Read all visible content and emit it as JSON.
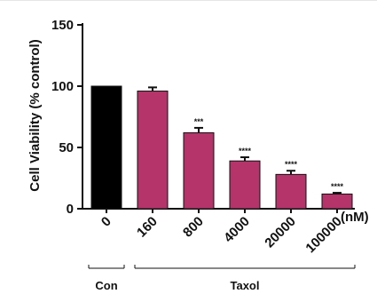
{
  "chart_data": {
    "type": "bar",
    "ylabel": "Cell Viability (% control)",
    "ylim": [
      0,
      150
    ],
    "yticks": [
      0,
      50,
      100,
      150
    ],
    "categories": [
      "0",
      "160",
      "800",
      "4000",
      "20000",
      "100000"
    ],
    "x_unit": "(nM)",
    "values": [
      100,
      96,
      62,
      39,
      28,
      12
    ],
    "errors": [
      0,
      3,
      4,
      3,
      3,
      1
    ],
    "significance": [
      "",
      "",
      "***",
      "****",
      "****",
      "****"
    ],
    "bar_colors": [
      "#000000",
      "#b5356b",
      "#b5356b",
      "#b5356b",
      "#b5356b",
      "#b5356b"
    ],
    "groups": [
      {
        "label": "Con",
        "from": 0,
        "to": 0
      },
      {
        "label": "Taxol",
        "from": 1,
        "to": 5
      }
    ],
    "grid": false,
    "legend": "none"
  }
}
